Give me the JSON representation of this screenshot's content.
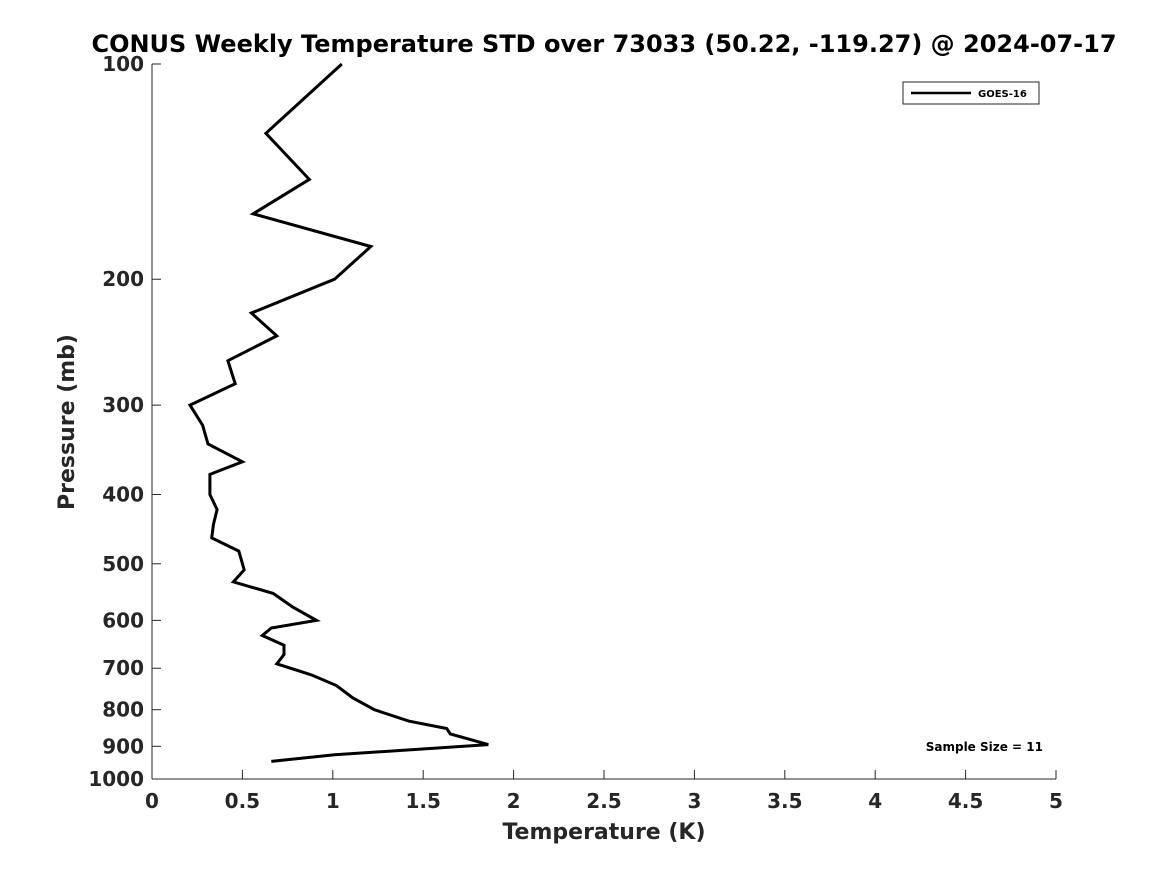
{
  "chart_data": {
    "type": "line",
    "title": "CONUS Weekly Temperature STD over 73033 (50.22, -119.27) @ 2024-07-17",
    "xlabel": "Temperature (K)",
    "ylabel": "Pressure (mb)",
    "xlim": [
      0,
      5
    ],
    "ylim": [
      1000,
      100
    ],
    "y_scale": "log",
    "y_reversed": true,
    "grid": false,
    "legend_position": "top-right",
    "x_ticks": [
      0,
      0.5,
      1,
      1.5,
      2,
      2.5,
      3,
      3.5,
      4,
      4.5,
      5
    ],
    "x_tick_labels": [
      "0",
      "0.5",
      "1",
      "1.5",
      "2",
      "2.5",
      "3",
      "3.5",
      "4",
      "4.5",
      "5"
    ],
    "y_ticks": [
      100,
      200,
      300,
      400,
      500,
      600,
      700,
      800,
      900,
      1000
    ],
    "y_tick_labels": [
      "100",
      "200",
      "300",
      "400",
      "500",
      "600",
      "700",
      "800",
      "900",
      "1000"
    ],
    "series": [
      {
        "name": "GOES-16",
        "color": "#000000",
        "points": [
          [
            1.05,
            100
          ],
          [
            0.63,
            125
          ],
          [
            0.87,
            145
          ],
          [
            0.56,
            162
          ],
          [
            1.21,
            180
          ],
          [
            1.01,
            200
          ],
          [
            0.55,
            223
          ],
          [
            0.69,
            240
          ],
          [
            0.42,
            260
          ],
          [
            0.46,
            280
          ],
          [
            0.21,
            300
          ],
          [
            0.28,
            320
          ],
          [
            0.31,
            340
          ],
          [
            0.5,
            360
          ],
          [
            0.32,
            375
          ],
          [
            0.32,
            400
          ],
          [
            0.36,
            420
          ],
          [
            0.34,
            440
          ],
          [
            0.33,
            460
          ],
          [
            0.48,
            480
          ],
          [
            0.51,
            510
          ],
          [
            0.45,
            530
          ],
          [
            0.67,
            550
          ],
          [
            0.78,
            575
          ],
          [
            0.91,
            600
          ],
          [
            0.66,
            615
          ],
          [
            0.61,
            630
          ],
          [
            0.73,
            650
          ],
          [
            0.73,
            670
          ],
          [
            0.69,
            690
          ],
          [
            0.88,
            715
          ],
          [
            1.02,
            740
          ],
          [
            1.11,
            770
          ],
          [
            1.23,
            800
          ],
          [
            1.42,
            830
          ],
          [
            1.63,
            850
          ],
          [
            1.65,
            865
          ],
          [
            1.86,
            895
          ],
          [
            1.01,
            925
          ],
          [
            0.66,
            945
          ]
        ]
      }
    ],
    "annotations": [
      {
        "text": "Sample Size = 11",
        "position": "bottom-right"
      }
    ]
  }
}
